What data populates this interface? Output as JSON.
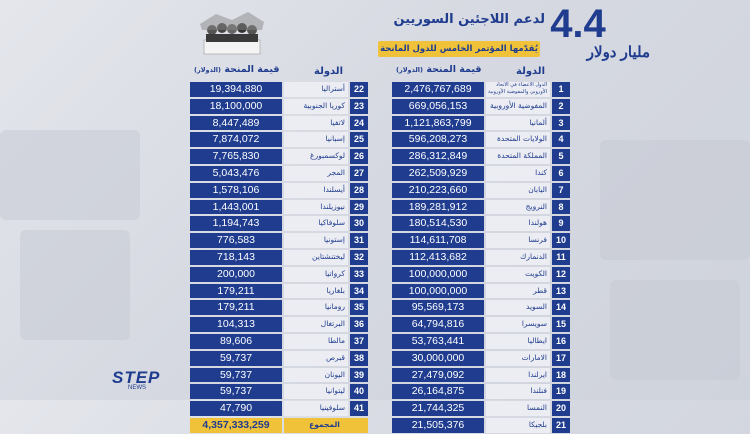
{
  "header": {
    "amount": "4.4",
    "unit": "مليار دولار",
    "headline": "لدعم اللاجئين السوريين",
    "subline": "يُقدّمها المؤتمر الخامس للدول المانحة"
  },
  "columns": {
    "country": "الدولة",
    "amount": "قيمة المنحة",
    "unit": "(الدولار)"
  },
  "left_rows": [
    {
      "num": "1",
      "country": "الدول الأعضاء في الاتحاد الأوروبي والمفوضية الأوروبية",
      "amount": "2,476,767,689"
    },
    {
      "num": "2",
      "country": "المفوضية الأوروبية",
      "amount": "669,056,153"
    },
    {
      "num": "3",
      "country": "ألمانيا",
      "amount": "1,121,863,799"
    },
    {
      "num": "4",
      "country": "الولايات المتحدة",
      "amount": "596,208,273"
    },
    {
      "num": "5",
      "country": "المملكة المتحدة",
      "amount": "286,312,849"
    },
    {
      "num": "6",
      "country": "كندا",
      "amount": "262,509,929"
    },
    {
      "num": "7",
      "country": "اليابان",
      "amount": "210,223,660"
    },
    {
      "num": "8",
      "country": "النرويج",
      "amount": "189,281,912"
    },
    {
      "num": "9",
      "country": "هولندا",
      "amount": "180,514,530"
    },
    {
      "num": "10",
      "country": "فرنسا",
      "amount": "114,611,708"
    },
    {
      "num": "11",
      "country": "الدنمارك",
      "amount": "112,413,682"
    },
    {
      "num": "12",
      "country": "الكويت",
      "amount": "100,000,000"
    },
    {
      "num": "13",
      "country": "قطر",
      "amount": "100,000,000"
    },
    {
      "num": "14",
      "country": "السويد",
      "amount": "95,569,173"
    },
    {
      "num": "15",
      "country": "سويسرا",
      "amount": "64,794,816"
    },
    {
      "num": "16",
      "country": "ايطاليا",
      "amount": "53,763,441"
    },
    {
      "num": "17",
      "country": "الامارات",
      "amount": "30,000,000"
    },
    {
      "num": "18",
      "country": "ايرلندا",
      "amount": "27,479,092"
    },
    {
      "num": "19",
      "country": "فنلندا",
      "amount": "26,164,875"
    },
    {
      "num": "20",
      "country": "النمسا",
      "amount": "21,744,325"
    },
    {
      "num": "21",
      "country": "بلجيكا",
      "amount": "21,505,376"
    }
  ],
  "right_rows": [
    {
      "num": "22",
      "country": "أستراليا",
      "amount": "19,394,880"
    },
    {
      "num": "23",
      "country": "كوريا الجنوبية",
      "amount": "18,100,000"
    },
    {
      "num": "24",
      "country": "لاتفيا",
      "amount": "8,447,489"
    },
    {
      "num": "25",
      "country": "إسبانيا",
      "amount": "7,874,072"
    },
    {
      "num": "26",
      "country": "لوكسمبورغ",
      "amount": "7,765,830"
    },
    {
      "num": "27",
      "country": "المجر",
      "amount": "5,043,476"
    },
    {
      "num": "28",
      "country": "أيسلندا",
      "amount": "1,578,106"
    },
    {
      "num": "29",
      "country": "نيوزيلندا",
      "amount": "1,443,001"
    },
    {
      "num": "30",
      "country": "سلوفاكيا",
      "amount": "1,194,743"
    },
    {
      "num": "31",
      "country": "إستونيا",
      "amount": "776,583"
    },
    {
      "num": "32",
      "country": "ليختنشتاين",
      "amount": "718,143"
    },
    {
      "num": "33",
      "country": "كرواتيا",
      "amount": "200,000"
    },
    {
      "num": "34",
      "country": "بلغاريا",
      "amount": "179,211"
    },
    {
      "num": "35",
      "country": "رومانيا",
      "amount": "179,211"
    },
    {
      "num": "36",
      "country": "البرتغال",
      "amount": "104,313"
    },
    {
      "num": "37",
      "country": "مالطا",
      "amount": "89,606"
    },
    {
      "num": "38",
      "country": "قبرص",
      "amount": "59,737"
    },
    {
      "num": "39",
      "country": "اليونان",
      "amount": "59,737"
    },
    {
      "num": "40",
      "country": "ليتوانيا",
      "amount": "59,737"
    },
    {
      "num": "41",
      "country": "سلوفينيا",
      "amount": "47,790"
    }
  ],
  "total": {
    "label": "المجموع",
    "amount": "4,357,333,259"
  },
  "logo": {
    "name": "STEP",
    "sub": "NEWS"
  },
  "colors": {
    "primary": "#1f3c8f",
    "accent": "#f0c23a"
  }
}
